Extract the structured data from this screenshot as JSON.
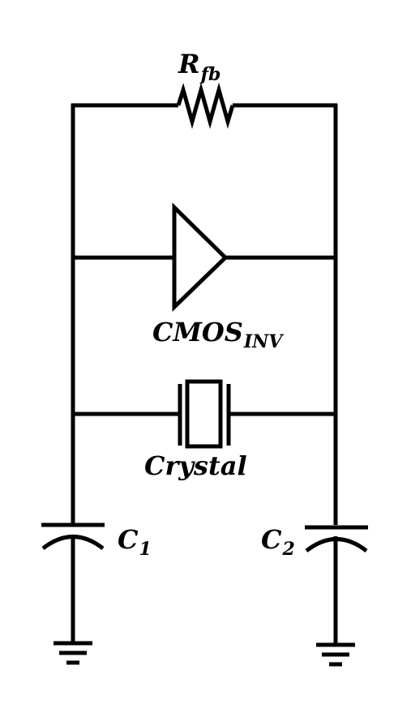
{
  "labels": {
    "rfb": {
      "main": "R",
      "sub": "fb"
    },
    "inverter": {
      "main": "CMOS",
      "sub": "INV"
    },
    "crystal": {
      "main": "Crystal"
    },
    "c1": {
      "main": "C",
      "sub": "1"
    },
    "c2": {
      "main": "C",
      "sub": "2"
    }
  },
  "colors": {
    "stroke": "#000000",
    "background": "#ffffff"
  }
}
